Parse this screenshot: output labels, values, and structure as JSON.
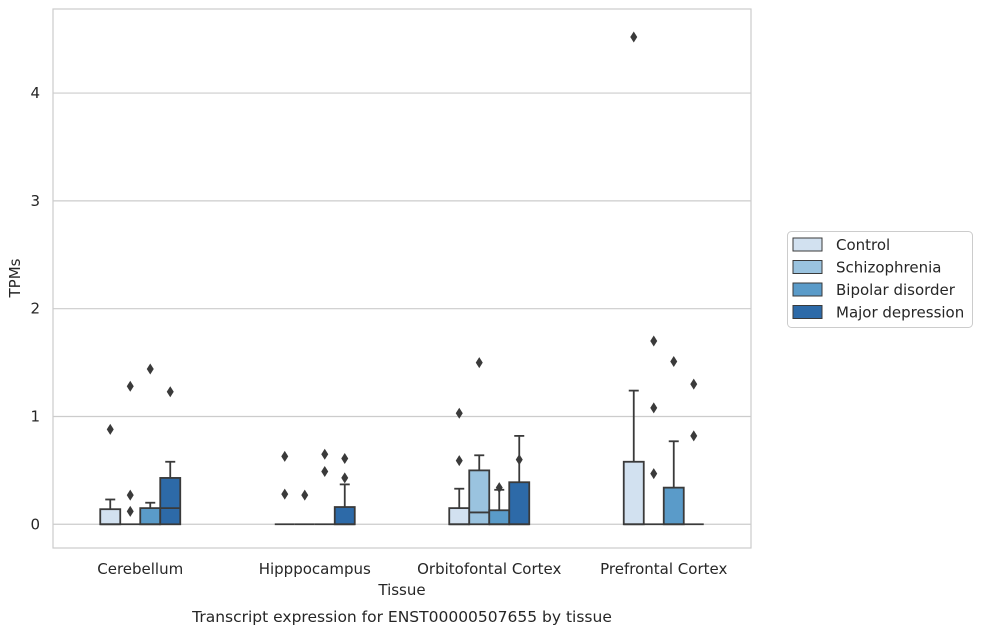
{
  "chart_data": {
    "type": "box",
    "title": "",
    "caption": "Transcript expression for ENST00000507655 by tissue",
    "xlabel": "Tissue",
    "ylabel": "TPMs",
    "ylim": [
      -0.22,
      4.78
    ],
    "yticks": [
      0,
      1,
      2,
      3,
      4
    ],
    "grid": true,
    "legend_position": "right",
    "categories": [
      "Cerebellum",
      "Hipppocampus",
      "Orbitofontal Cortex",
      "Prefrontal Cortex"
    ],
    "series": [
      {
        "name": "Control",
        "color": "#d2e1f0",
        "boxes": [
          {
            "q1": 0,
            "median": 0,
            "q3": 0.14,
            "whisker_low": 0,
            "whisker_high": 0.23,
            "outliers": [
              0.88
            ]
          },
          {
            "q1": 0,
            "median": 0,
            "q3": 0,
            "whisker_low": 0,
            "whisker_high": 0,
            "outliers": [
              0.63,
              0.28
            ]
          },
          {
            "q1": 0,
            "median": 0,
            "q3": 0.15,
            "whisker_low": 0,
            "whisker_high": 0.33,
            "outliers": [
              1.03,
              0.59
            ]
          },
          {
            "q1": 0,
            "median": 0,
            "q3": 0.58,
            "whisker_low": 0,
            "whisker_high": 1.24,
            "outliers": [
              4.52
            ]
          }
        ]
      },
      {
        "name": "Schizophrenia",
        "color": "#9ac3df",
        "boxes": [
          {
            "q1": 0,
            "median": 0,
            "q3": 0,
            "whisker_low": 0,
            "whisker_high": 0,
            "outliers": [
              1.28,
              0.27,
              0.12
            ]
          },
          {
            "q1": 0,
            "median": 0,
            "q3": 0,
            "whisker_low": 0,
            "whisker_high": 0,
            "outliers": [
              0.27
            ]
          },
          {
            "q1": 0,
            "median": 0.11,
            "q3": 0.5,
            "whisker_low": 0,
            "whisker_high": 0.64,
            "outliers": [
              1.5
            ]
          },
          {
            "q1": 0,
            "median": 0,
            "q3": 0,
            "whisker_low": 0,
            "whisker_high": 0,
            "outliers": [
              1.7,
              1.08,
              0.47
            ]
          }
        ]
      },
      {
        "name": "Bipolar disorder",
        "color": "#5a9bc9",
        "boxes": [
          {
            "q1": 0,
            "median": 0,
            "q3": 0.15,
            "whisker_low": 0,
            "whisker_high": 0.2,
            "outliers": [
              1.44
            ]
          },
          {
            "q1": 0,
            "median": 0,
            "q3": 0,
            "whisker_low": 0,
            "whisker_high": 0,
            "outliers": [
              0.65,
              0.49
            ]
          },
          {
            "q1": 0,
            "median": 0,
            "q3": 0.13,
            "whisker_low": 0,
            "whisker_high": 0.32,
            "outliers": [
              0.34
            ]
          },
          {
            "q1": 0,
            "median": 0,
            "q3": 0.34,
            "whisker_low": 0,
            "whisker_high": 0.77,
            "outliers": [
              1.51
            ]
          }
        ]
      },
      {
        "name": "Major depression",
        "color": "#2d6aa8",
        "boxes": [
          {
            "q1": 0,
            "median": 0.15,
            "q3": 0.43,
            "whisker_low": 0,
            "whisker_high": 0.58,
            "outliers": [
              1.23
            ]
          },
          {
            "q1": 0,
            "median": 0,
            "q3": 0.16,
            "whisker_low": 0,
            "whisker_high": 0.37,
            "outliers": [
              0.61,
              0.43
            ]
          },
          {
            "q1": 0,
            "median": 0,
            "q3": 0.39,
            "whisker_low": 0,
            "whisker_high": 0.82,
            "outliers": [
              0.6
            ]
          },
          {
            "q1": 0,
            "median": 0,
            "q3": 0,
            "whisker_low": 0,
            "whisker_high": 0,
            "outliers": [
              1.3,
              0.82
            ]
          }
        ]
      }
    ]
  }
}
